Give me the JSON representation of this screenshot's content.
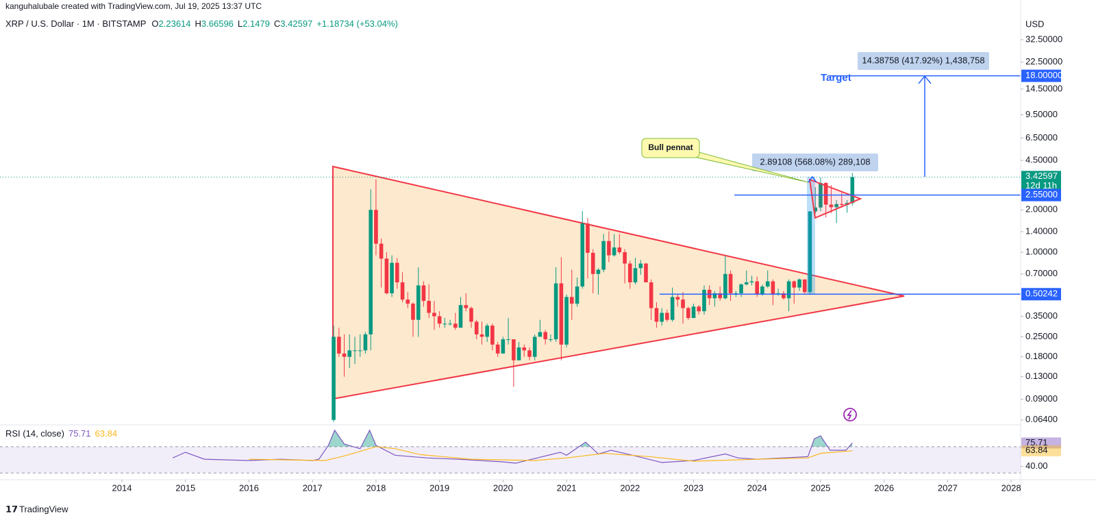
{
  "header": "kanguhalubale created with TradingView.com, Jul 19, 2025 13:37 UTC",
  "footer": "TradingView",
  "chart_data": {
    "type": "candlestick",
    "title": "XRP / U.S. Dollar · 1M · BITSTAMP",
    "ohlc_prefixes": [
      "O",
      "H",
      "L",
      "C"
    ],
    "change": "+1.18734 (+53.04%)",
    "currency": "USD",
    "log_scale": true,
    "grid": false,
    "up_color": "#089981",
    "down_color": "#f23645",
    "xlim": [
      2012.08,
      2028.15
    ],
    "xticks": [
      2014,
      2015,
      2016,
      2017,
      2018,
      2019,
      2020,
      2021,
      2022,
      2023,
      2024,
      2025,
      2026,
      2027,
      2028
    ],
    "ylim": [
      0.059,
      48.7
    ],
    "yticks": [
      {
        "value": 32.5,
        "label": "32.50000"
      },
      {
        "value": 22.5,
        "label": "22.50000"
      },
      {
        "value": 14.5,
        "label": "14.50000"
      },
      {
        "value": 9.5,
        "label": "9.50000"
      },
      {
        "value": 6.5,
        "label": "6.50000"
      },
      {
        "value": 4.5,
        "label": "4.50000"
      },
      {
        "value": 2,
        "label": "2.00000"
      },
      {
        "value": 1.4,
        "label": "1.40000"
      },
      {
        "value": 1,
        "label": "1.00000"
      },
      {
        "value": 0.7,
        "label": "0.70000"
      },
      {
        "value": 0.35,
        "label": "0.35000"
      },
      {
        "value": 0.25,
        "label": "0.25000"
      },
      {
        "value": 0.18,
        "label": "0.18000"
      },
      {
        "value": 0.13,
        "label": "0.13000"
      },
      {
        "value": 0.09,
        "label": "0.09000"
      },
      {
        "value": 0.064,
        "label": "0.06400"
      }
    ],
    "x": [
      2017.333,
      2017.417,
      2017.5,
      2017.583,
      2017.667,
      2017.75,
      2017.833,
      2017.917,
      2018.0,
      2018.083,
      2018.167,
      2018.25,
      2018.333,
      2018.417,
      2018.5,
      2018.583,
      2018.667,
      2018.75,
      2018.833,
      2018.917,
      2019.0,
      2019.083,
      2019.167,
      2019.25,
      2019.333,
      2019.417,
      2019.5,
      2019.583,
      2019.667,
      2019.75,
      2019.833,
      2019.917,
      2020.0,
      2020.083,
      2020.167,
      2020.25,
      2020.333,
      2020.417,
      2020.5,
      2020.583,
      2020.667,
      2020.75,
      2020.833,
      2020.917,
      2021.0,
      2021.083,
      2021.167,
      2021.25,
      2021.333,
      2021.417,
      2021.5,
      2021.583,
      2021.667,
      2021.75,
      2021.833,
      2021.917,
      2022.0,
      2022.083,
      2022.167,
      2022.25,
      2022.333,
      2022.417,
      2022.5,
      2022.583,
      2022.667,
      2022.75,
      2022.833,
      2022.917,
      2023.0,
      2023.083,
      2023.167,
      2023.25,
      2023.333,
      2023.417,
      2023.5,
      2023.583,
      2023.667,
      2023.75,
      2023.833,
      2023.917,
      2024.0,
      2024.083,
      2024.167,
      2024.25,
      2024.333,
      2024.417,
      2024.5,
      2024.583,
      2024.667,
      2024.75,
      2024.833,
      2024.917,
      2025.0,
      2025.083,
      2025.167,
      2025.25,
      2025.333,
      2025.417,
      2025.5
    ],
    "candles": [
      [
        0.064,
        0.3,
        0.062,
        0.25
      ],
      [
        0.25,
        0.29,
        0.18,
        0.19
      ],
      [
        0.19,
        0.26,
        0.13,
        0.18
      ],
      [
        0.18,
        0.26,
        0.15,
        0.2
      ],
      [
        0.2,
        0.25,
        0.16,
        0.2
      ],
      [
        0.2,
        0.26,
        0.18,
        0.2
      ],
      [
        0.2,
        0.27,
        0.19,
        0.26
      ],
      [
        0.26,
        2.8,
        0.2,
        2.0
      ],
      [
        2.0,
        3.3,
        0.95,
        1.15
      ],
      [
        1.15,
        1.25,
        0.56,
        0.9
      ],
      [
        0.9,
        1.0,
        0.5,
        0.51
      ],
      [
        0.51,
        0.95,
        0.48,
        0.84
      ],
      [
        0.84,
        0.91,
        0.55,
        0.61
      ],
      [
        0.61,
        0.72,
        0.44,
        0.46
      ],
      [
        0.46,
        0.52,
        0.4,
        0.43
      ],
      [
        0.43,
        0.44,
        0.25,
        0.33
      ],
      [
        0.33,
        0.78,
        0.25,
        0.58
      ],
      [
        0.58,
        0.62,
        0.41,
        0.45
      ],
      [
        0.45,
        0.59,
        0.34,
        0.37
      ],
      [
        0.37,
        0.45,
        0.28,
        0.35
      ],
      [
        0.35,
        0.38,
        0.29,
        0.31
      ],
      [
        0.31,
        0.34,
        0.29,
        0.31
      ],
      [
        0.31,
        0.33,
        0.3,
        0.31
      ],
      [
        0.31,
        0.37,
        0.28,
        0.29
      ],
      [
        0.29,
        0.48,
        0.29,
        0.42
      ],
      [
        0.42,
        0.51,
        0.38,
        0.4
      ],
      [
        0.4,
        0.41,
        0.29,
        0.32
      ],
      [
        0.32,
        0.33,
        0.24,
        0.26
      ],
      [
        0.26,
        0.32,
        0.22,
        0.25
      ],
      [
        0.25,
        0.31,
        0.23,
        0.3
      ],
      [
        0.3,
        0.31,
        0.2,
        0.22
      ],
      [
        0.22,
        0.23,
        0.18,
        0.19
      ],
      [
        0.19,
        0.25,
        0.19,
        0.24
      ],
      [
        0.24,
        0.34,
        0.22,
        0.24
      ],
      [
        0.24,
        0.24,
        0.11,
        0.17
      ],
      [
        0.17,
        0.23,
        0.17,
        0.21
      ],
      [
        0.21,
        0.22,
        0.18,
        0.2
      ],
      [
        0.2,
        0.21,
        0.17,
        0.18
      ],
      [
        0.18,
        0.26,
        0.17,
        0.25
      ],
      [
        0.25,
        0.33,
        0.25,
        0.27
      ],
      [
        0.27,
        0.28,
        0.22,
        0.24
      ],
      [
        0.24,
        0.26,
        0.23,
        0.24
      ],
      [
        0.24,
        0.78,
        0.23,
        0.6
      ],
      [
        0.6,
        0.92,
        0.17,
        0.22
      ],
      [
        0.22,
        0.5,
        0.21,
        0.48
      ],
      [
        0.48,
        0.75,
        0.33,
        0.43
      ],
      [
        0.43,
        0.66,
        0.41,
        0.57
      ],
      [
        0.57,
        1.96,
        0.55,
        1.6
      ],
      [
        1.6,
        1.75,
        0.65,
        0.99
      ],
      [
        0.99,
        1.05,
        0.51,
        0.7
      ],
      [
        0.7,
        0.77,
        0.5,
        0.75
      ],
      [
        0.75,
        1.35,
        0.72,
        1.2
      ],
      [
        1.2,
        1.41,
        0.85,
        0.95
      ],
      [
        0.95,
        1.34,
        0.93,
        1.08
      ],
      [
        1.08,
        1.35,
        0.97,
        1.0
      ],
      [
        1.0,
        1.05,
        0.6,
        0.83
      ],
      [
        0.83,
        0.87,
        0.55,
        0.61
      ],
      [
        0.61,
        0.91,
        0.59,
        0.77
      ],
      [
        0.77,
        0.88,
        0.69,
        0.83
      ],
      [
        0.83,
        0.84,
        0.61,
        0.61
      ],
      [
        0.61,
        0.64,
        0.33,
        0.4
      ],
      [
        0.4,
        0.44,
        0.29,
        0.32
      ],
      [
        0.32,
        0.4,
        0.3,
        0.37
      ],
      [
        0.37,
        0.39,
        0.32,
        0.33
      ],
      [
        0.33,
        0.56,
        0.32,
        0.48
      ],
      [
        0.48,
        0.5,
        0.41,
        0.46
      ],
      [
        0.46,
        0.52,
        0.31,
        0.4
      ],
      [
        0.4,
        0.41,
        0.33,
        0.34
      ],
      [
        0.34,
        0.43,
        0.34,
        0.41
      ],
      [
        0.41,
        0.42,
        0.36,
        0.38
      ],
      [
        0.38,
        0.58,
        0.36,
        0.54
      ],
      [
        0.54,
        0.58,
        0.42,
        0.47
      ],
      [
        0.47,
        0.53,
        0.41,
        0.51
      ],
      [
        0.51,
        0.57,
        0.45,
        0.47
      ],
      [
        0.47,
        0.94,
        0.46,
        0.7
      ],
      [
        0.7,
        0.74,
        0.45,
        0.51
      ],
      [
        0.51,
        0.53,
        0.48,
        0.51
      ],
      [
        0.51,
        0.6,
        0.48,
        0.59
      ],
      [
        0.59,
        0.74,
        0.58,
        0.61
      ],
      [
        0.61,
        0.68,
        0.58,
        0.62
      ],
      [
        0.62,
        0.67,
        0.48,
        0.5
      ],
      [
        0.5,
        0.59,
        0.49,
        0.57
      ],
      [
        0.57,
        0.74,
        0.56,
        0.62
      ],
      [
        0.62,
        0.64,
        0.42,
        0.5
      ],
      [
        0.5,
        0.55,
        0.49,
        0.51
      ],
      [
        0.51,
        0.53,
        0.46,
        0.47
      ],
      [
        0.47,
        0.64,
        0.38,
        0.62
      ],
      [
        0.62,
        0.63,
        0.43,
        0.56
      ],
      [
        0.56,
        0.65,
        0.53,
        0.64
      ],
      [
        0.64,
        0.64,
        0.5,
        0.52
      ],
      [
        0.52,
        1.96,
        0.5,
        1.95
      ],
      [
        1.95,
        2.9,
        1.88,
        2.08
      ],
      [
        2.08,
        3.4,
        1.96,
        3.11
      ],
      [
        3.11,
        3.15,
        1.77,
        2.18
      ],
      [
        2.18,
        3.0,
        1.9,
        2.09
      ],
      [
        2.09,
        2.35,
        1.61,
        2.2
      ],
      [
        2.2,
        2.65,
        2.08,
        2.17
      ],
      [
        2.17,
        2.35,
        1.91,
        2.24
      ],
      [
        2.23614,
        3.66596,
        2.1479,
        3.42597
      ]
    ],
    "last_price_countdown": "12d 11h",
    "levels": [
      {
        "value": 18,
        "label": "18.00000"
      },
      {
        "value": 2.55,
        "label": "2.55000"
      },
      {
        "value": 0.50242,
        "label": "0.50242"
      }
    ],
    "level_color": "#2962ff",
    "annotations": {
      "target": "Target",
      "pennant": "Bull pennat",
      "measure_1": "2.89108 (568.08%) 289,108",
      "measure_2": "14.38758 (417.92%) 1,438,758"
    },
    "rsi": {
      "title": "RSI (14, close)",
      "ylim": [
        22,
        100
      ],
      "yticks": [
        {
          "value": 40,
          "label": "40.00"
        }
      ],
      "band": [
        30,
        70
      ],
      "series": [
        {
          "color": "#7e57c2",
          "x": [
            2014.8,
            2015.0,
            2015.3,
            2016.0,
            2016.5,
            2017.0,
            2017.1,
            2017.25,
            2017.35,
            2017.5,
            2017.75,
            2017.9,
            2018.0,
            2018.3,
            2018.8,
            2019.3,
            2020.0,
            2020.2,
            2020.9,
            2021.0,
            2021.3,
            2021.5,
            2021.7,
            2022.0,
            2022.5,
            2023.0,
            2023.5,
            2023.7,
            2024.0,
            2024.8,
            2024.9,
            2025.0,
            2025.15,
            2025.4,
            2025.5
          ],
          "values": [
            53,
            61.5,
            51,
            49,
            51,
            49,
            51,
            72,
            95,
            74,
            67,
            95,
            72,
            57,
            53,
            51,
            47,
            45,
            61.5,
            57,
            77,
            59,
            64.6,
            58,
            46,
            49,
            59,
            53,
            51,
            55,
            82,
            86.5,
            64.6,
            64.6,
            75.71
          ]
        },
        {
          "color": "#f9b81b",
          "x": [
            2016.0,
            2017.2,
            2017.5,
            2018.0,
            2018.3,
            2018.7,
            2019.5,
            2020.5,
            2021.0,
            2021.6,
            2022.3,
            2023.0,
            2024.0,
            2024.8,
            2025.0,
            2025.5
          ],
          "values": [
            51,
            49,
            56,
            70,
            67,
            58,
            51,
            49,
            53,
            60,
            55,
            48,
            51,
            53,
            60,
            63.84
          ]
        }
      ]
    }
  }
}
